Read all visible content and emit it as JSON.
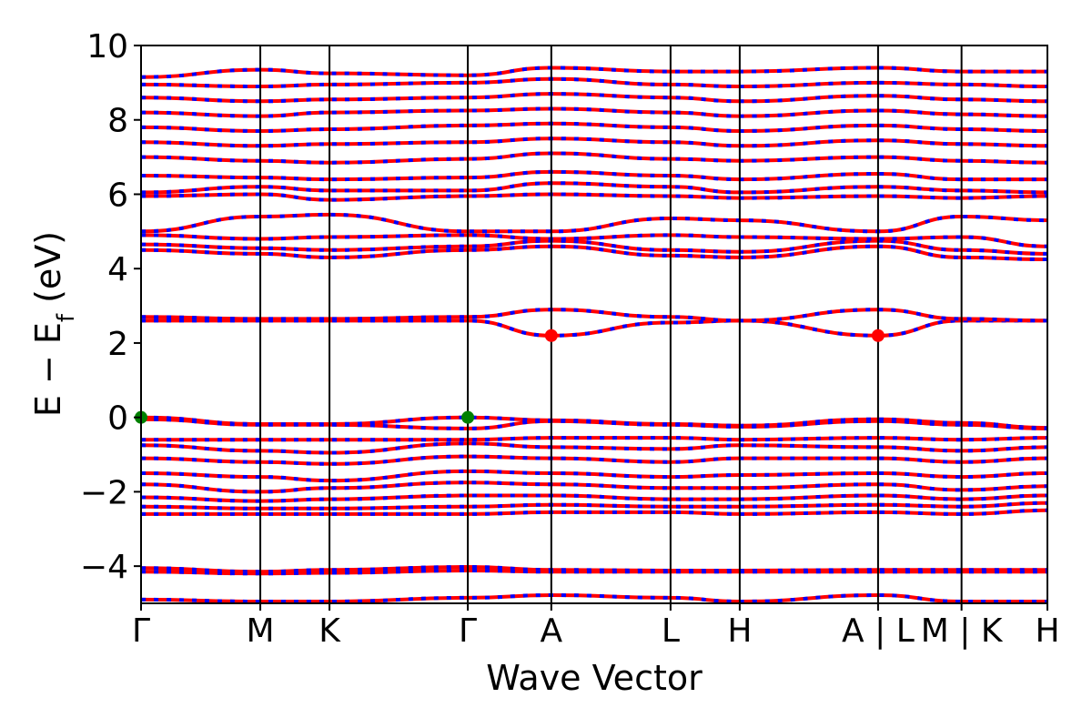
{
  "chart_data": {
    "type": "line",
    "title": "",
    "xlabel": "Wave Vector",
    "ylabel_main": "E − E",
    "ylabel_sub": "f",
    "ylabel_tail": " (eV)",
    "ylim": [
      -5,
      10
    ],
    "yticks": [
      "−4",
      "−2",
      "0",
      "2",
      "4",
      "6",
      "8",
      "10"
    ],
    "ytick_values": [
      -4,
      -2,
      0,
      2,
      4,
      6,
      8,
      10
    ],
    "xlim": [
      0,
      7.6
    ],
    "kpoints": [
      {
        "label": "Γ",
        "x": 0.0
      },
      {
        "label": "M",
        "x": 1.0
      },
      {
        "label": "K",
        "x": 1.58
      },
      {
        "label": "Γ",
        "x": 2.74
      },
      {
        "label": "A",
        "x": 3.44
      },
      {
        "label": "L",
        "x": 4.44
      },
      {
        "label": "H",
        "x": 5.02
      },
      {
        "label": "A | L",
        "x": 6.18
      },
      {
        "label": "M | K",
        "x": 6.88
      },
      {
        "label": "H",
        "x": 7.6
      }
    ],
    "colors": {
      "band_main": "#ff0000",
      "band_dash": "#0000ff",
      "vbm": "#008000",
      "cbm": "#ff0000"
    },
    "markers": [
      {
        "kind": "vbm",
        "x": 0.0,
        "y": 0.0
      },
      {
        "kind": "vbm",
        "x": 2.74,
        "y": 0.0
      },
      {
        "kind": "cbm",
        "x": 3.44,
        "y": 2.2
      },
      {
        "kind": "cbm",
        "x": 6.18,
        "y": 2.2
      }
    ],
    "bands": [
      [
        -4.9,
        -4.95,
        -4.95,
        -4.85,
        -4.78,
        -4.85,
        -4.95,
        -4.78,
        -4.95,
        -4.95
      ],
      [
        -4.05,
        -4.15,
        -4.1,
        -4.02,
        -4.1,
        -4.12,
        -4.12,
        -4.1,
        -4.1,
        -4.1
      ],
      [
        -4.15,
        -4.2,
        -4.18,
        -4.12,
        -4.15,
        -4.15,
        -4.15,
        -4.15,
        -4.15,
        -4.15
      ],
      [
        -2.6,
        -2.6,
        -2.6,
        -2.6,
        -2.55,
        -2.55,
        -2.6,
        -2.55,
        -2.6,
        -2.5
      ],
      [
        -2.4,
        -2.45,
        -2.45,
        -2.4,
        -2.35,
        -2.4,
        -2.4,
        -2.35,
        -2.4,
        -2.3
      ],
      [
        -2.15,
        -2.25,
        -2.2,
        -2.1,
        -2.1,
        -2.2,
        -2.2,
        -2.1,
        -2.2,
        -2.1
      ],
      [
        -1.8,
        -2.0,
        -1.9,
        -1.75,
        -1.8,
        -1.9,
        -1.9,
        -1.8,
        -1.95,
        -1.85
      ],
      [
        -1.5,
        -1.6,
        -1.7,
        -1.45,
        -1.5,
        -1.6,
        -1.55,
        -1.5,
        -1.6,
        -1.5
      ],
      [
        -1.1,
        -1.2,
        -1.25,
        -1.05,
        -1.1,
        -1.2,
        -1.1,
        -1.1,
        -1.2,
        -1.1
      ],
      [
        -0.75,
        -0.9,
        -0.95,
        -0.7,
        -0.8,
        -0.85,
        -0.75,
        -0.8,
        -0.9,
        -0.8
      ],
      [
        -0.6,
        -0.6,
        -0.6,
        -0.6,
        -0.55,
        -0.55,
        -0.6,
        -0.55,
        -0.6,
        -0.55
      ],
      [
        0.0,
        -0.18,
        -0.18,
        0.0,
        -0.08,
        -0.18,
        -0.22,
        -0.05,
        -0.15,
        -0.28
      ],
      [
        -0.05,
        -0.2,
        -0.2,
        -0.3,
        -0.1,
        -0.2,
        -0.25,
        -0.1,
        -0.2,
        -0.3
      ],
      [
        2.6,
        2.6,
        2.6,
        2.6,
        2.2,
        2.55,
        2.6,
        2.2,
        2.6,
        2.6
      ],
      [
        2.7,
        2.65,
        2.65,
        2.7,
        2.9,
        2.7,
        2.6,
        2.9,
        2.65,
        2.6
      ],
      [
        4.5,
        4.4,
        4.3,
        4.5,
        4.6,
        4.35,
        4.3,
        4.6,
        4.3,
        4.25
      ],
      [
        4.65,
        4.55,
        4.5,
        4.6,
        4.75,
        4.5,
        4.45,
        4.75,
        4.5,
        4.4
      ],
      [
        4.9,
        4.8,
        4.85,
        4.9,
        4.8,
        4.9,
        4.85,
        4.8,
        4.85,
        4.6
      ],
      [
        5.0,
        5.4,
        5.45,
        5.0,
        5.0,
        5.35,
        5.3,
        5.0,
        5.4,
        5.3
      ],
      [
        5.95,
        6.0,
        5.85,
        5.95,
        6.0,
        5.95,
        5.9,
        5.95,
        5.9,
        5.95
      ],
      [
        6.05,
        6.2,
        6.1,
        6.1,
        6.3,
        6.2,
        6.05,
        6.2,
        6.1,
        6.05
      ],
      [
        6.5,
        6.45,
        6.4,
        6.45,
        6.6,
        6.5,
        6.4,
        6.55,
        6.4,
        6.4
      ],
      [
        7.0,
        6.9,
        6.85,
        6.95,
        7.1,
        6.95,
        6.9,
        7.0,
        6.9,
        6.85
      ],
      [
        7.4,
        7.3,
        7.35,
        7.4,
        7.5,
        7.4,
        7.3,
        7.45,
        7.35,
        7.3
      ],
      [
        7.8,
        7.7,
        7.75,
        7.85,
        7.9,
        7.8,
        7.7,
        7.85,
        7.75,
        7.7
      ],
      [
        8.2,
        8.1,
        8.2,
        8.25,
        8.3,
        8.2,
        8.1,
        8.25,
        8.15,
        8.1
      ],
      [
        8.6,
        8.5,
        8.55,
        8.6,
        8.7,
        8.6,
        8.5,
        8.65,
        8.55,
        8.5
      ],
      [
        8.95,
        8.9,
        8.95,
        9.0,
        9.1,
        8.95,
        8.9,
        9.0,
        8.95,
        8.9
      ],
      [
        9.15,
        9.35,
        9.25,
        9.2,
        9.4,
        9.3,
        9.3,
        9.4,
        9.3,
        9.3
      ]
    ]
  }
}
